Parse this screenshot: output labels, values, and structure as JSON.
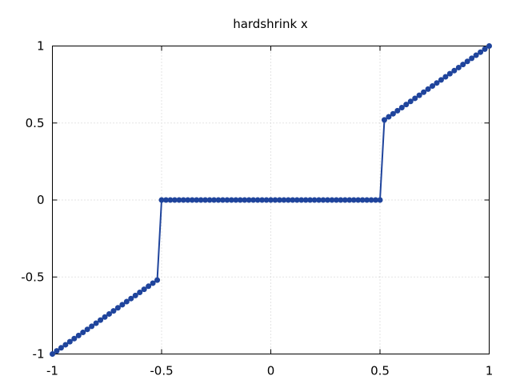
{
  "chart_data": {
    "type": "line",
    "title": "hardshrink x",
    "xlabel": "",
    "ylabel": "",
    "xlim": [
      -1,
      1
    ],
    "ylim": [
      -1,
      1
    ],
    "grid": true,
    "x_ticks": [
      -1,
      -0.5,
      0,
      0.5,
      1
    ],
    "y_ticks": [
      -1,
      -0.5,
      0,
      0.5,
      1
    ],
    "x_tick_labels": [
      "-1",
      "-0.5",
      "0",
      "0.5",
      "1"
    ],
    "y_tick_labels": [
      "-1",
      "-0.5",
      "0",
      "0.5",
      "1"
    ],
    "series": [
      {
        "color": "#1f449c",
        "marker": "circle",
        "x": [
          -1,
          -0.98,
          -0.96,
          -0.94,
          -0.92,
          -0.9,
          -0.88,
          -0.86,
          -0.84,
          -0.82,
          -0.8,
          -0.78,
          -0.76,
          -0.74,
          -0.72,
          -0.7,
          -0.68,
          -0.66,
          -0.64,
          -0.62,
          -0.6,
          -0.58,
          -0.56,
          -0.54,
          -0.52,
          -0.5,
          -0.48,
          -0.46,
          -0.44,
          -0.42,
          -0.4,
          -0.38,
          -0.36,
          -0.34,
          -0.32,
          -0.3,
          -0.28,
          -0.26,
          -0.24,
          -0.22,
          -0.2,
          -0.18,
          -0.16,
          -0.14,
          -0.12,
          -0.1,
          -0.08,
          -0.06,
          -0.04,
          -0.02,
          0,
          0.02,
          0.04,
          0.06,
          0.08,
          0.1,
          0.12,
          0.14,
          0.16,
          0.18,
          0.2,
          0.22,
          0.24,
          0.26,
          0.28,
          0.3,
          0.32,
          0.34,
          0.36,
          0.38,
          0.4,
          0.42,
          0.44,
          0.46,
          0.48,
          0.5,
          0.52,
          0.54,
          0.56,
          0.58,
          0.6,
          0.62,
          0.64,
          0.66,
          0.68,
          0.7,
          0.72,
          0.74,
          0.76,
          0.78,
          0.8,
          0.82,
          0.84,
          0.86,
          0.88,
          0.9,
          0.92,
          0.94,
          0.96,
          0.98,
          1
        ],
        "y": [
          -1,
          -0.98,
          -0.96,
          -0.94,
          -0.92,
          -0.9,
          -0.88,
          -0.86,
          -0.84,
          -0.82,
          -0.8,
          -0.78,
          -0.76,
          -0.74,
          -0.72,
          -0.7,
          -0.68,
          -0.66,
          -0.64,
          -0.62,
          -0.6,
          -0.58,
          -0.56,
          -0.54,
          -0.52,
          0,
          0,
          0,
          0,
          0,
          0,
          0,
          0,
          0,
          0,
          0,
          0,
          0,
          0,
          0,
          0,
          0,
          0,
          0,
          0,
          0,
          0,
          0,
          0,
          0,
          0,
          0,
          0,
          0,
          0,
          0,
          0,
          0,
          0,
          0,
          0,
          0,
          0,
          0,
          0,
          0,
          0,
          0,
          0,
          0,
          0,
          0,
          0,
          0,
          0,
          0,
          0.52,
          0.54,
          0.56,
          0.58,
          0.6,
          0.62,
          0.64,
          0.66,
          0.68,
          0.7,
          0.72,
          0.74,
          0.76,
          0.78,
          0.8,
          0.82,
          0.84,
          0.86,
          0.88,
          0.9,
          0.92,
          0.94,
          0.96,
          0.98,
          1
        ]
      }
    ]
  }
}
